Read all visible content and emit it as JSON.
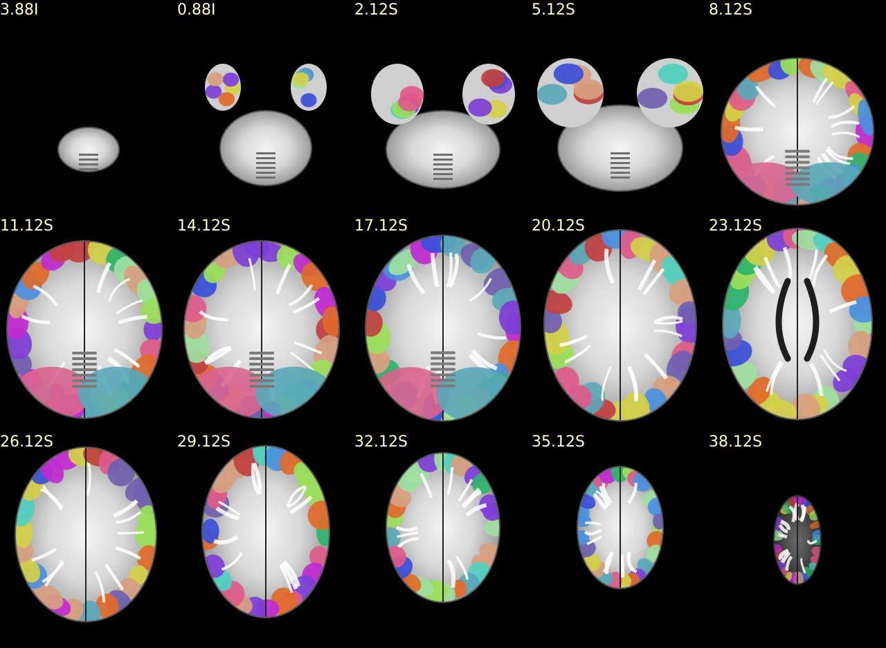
{
  "figure": {
    "background_color": "#000000",
    "label_color": "#ffffc8",
    "slices": [
      {
        "label": "3.88I",
        "kind": "brainstem-small"
      },
      {
        "label": "0.88I",
        "kind": "brainstem-temporal-tips"
      },
      {
        "label": "2.12S",
        "kind": "brainstem-temporal"
      },
      {
        "label": "5.12S",
        "kind": "cerebellum-temporal"
      },
      {
        "label": "8.12S",
        "kind": "cerebellum-wide"
      },
      {
        "label": "11.12S",
        "kind": "midbrain-cerebellum"
      },
      {
        "label": "14.12S",
        "kind": "midbrain-cerebellum"
      },
      {
        "label": "17.12S",
        "kind": "thalamus-occipital"
      },
      {
        "label": "20.12S",
        "kind": "basal-ganglia"
      },
      {
        "label": "23.12S",
        "kind": "ventricles"
      },
      {
        "label": "26.12S",
        "kind": "upper-cortex"
      },
      {
        "label": "29.12S",
        "kind": "upper-cortex-narrow"
      },
      {
        "label": "32.12S",
        "kind": "dorsal-cortex"
      },
      {
        "label": "35.12S",
        "kind": "dorsal-cap"
      },
      {
        "label": "38.12S",
        "kind": "vertex-small"
      }
    ],
    "parcel_colors": [
      "#e05a8a",
      "#5aa7b8",
      "#7c3fd6",
      "#2fb36a",
      "#d4d04a",
      "#e06a2a",
      "#3a4fd8",
      "#c02ad0",
      "#9be05a",
      "#50d0c0",
      "#d8a080",
      "#4a90e0",
      "#c04040",
      "#a0e0a0",
      "#7060b0"
    ]
  }
}
